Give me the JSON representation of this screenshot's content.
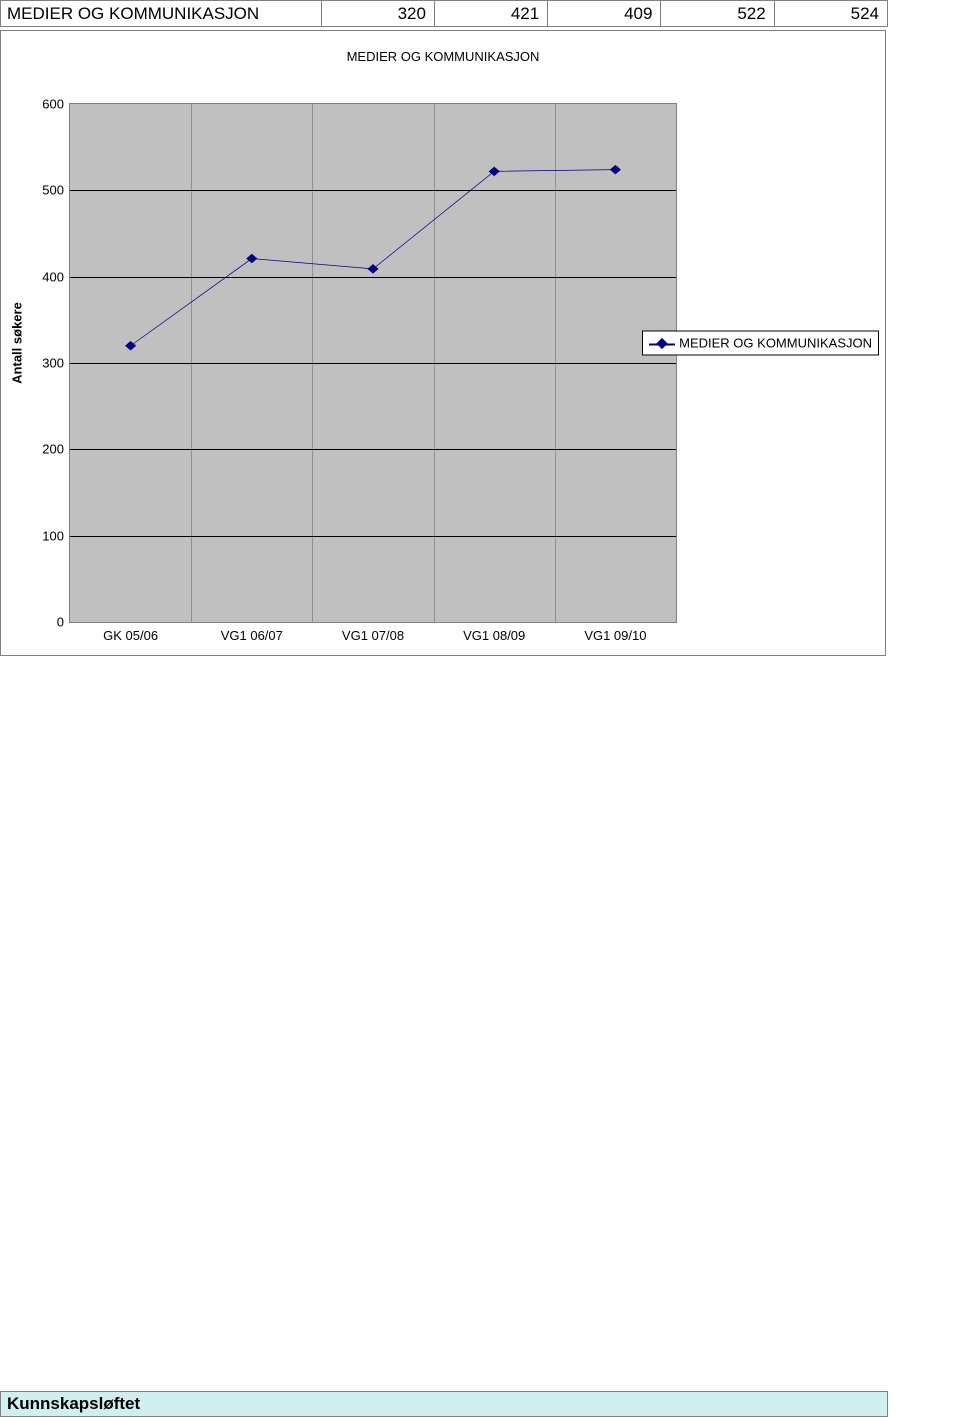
{
  "table": {
    "row_label": "MEDIER OG KOMMUNIKASJON",
    "values": [
      320,
      421,
      409,
      522,
      524
    ]
  },
  "chart": {
    "type": "line",
    "title": "MEDIER OG KOMMUNIKASJON",
    "y_axis_label": "Antall søkere",
    "series_name": "MEDIER OG KOMMUNIKASJON",
    "categories": [
      "GK 05/06",
      "VG1 06/07",
      "VG1 07/08",
      "VG1 08/09",
      "VG1 09/10"
    ],
    "values": [
      320,
      421,
      409,
      522,
      524
    ],
    "ylim": [
      0,
      600
    ],
    "ytick_step": 100,
    "y_ticks": [
      0,
      100,
      200,
      300,
      400,
      500,
      600
    ],
    "line_color": "#000080",
    "line_width": 2,
    "marker_style": "diamond",
    "marker_size": 8,
    "marker_color": "#000080",
    "plot_background": "#c0c0c0",
    "grid_color": "#000000",
    "chart_border_color": "#808080",
    "title_fontsize": 13,
    "tick_fontsize": 13,
    "legend_fontsize": 13,
    "legend_position": "right",
    "x_category_positions_pct": [
      10,
      30,
      50,
      70,
      90
    ]
  },
  "bottom_label": "Kunnskapsløftet",
  "colors": {
    "bottom_box_bg": "#d0f0f0",
    "table_border": "#808080"
  }
}
